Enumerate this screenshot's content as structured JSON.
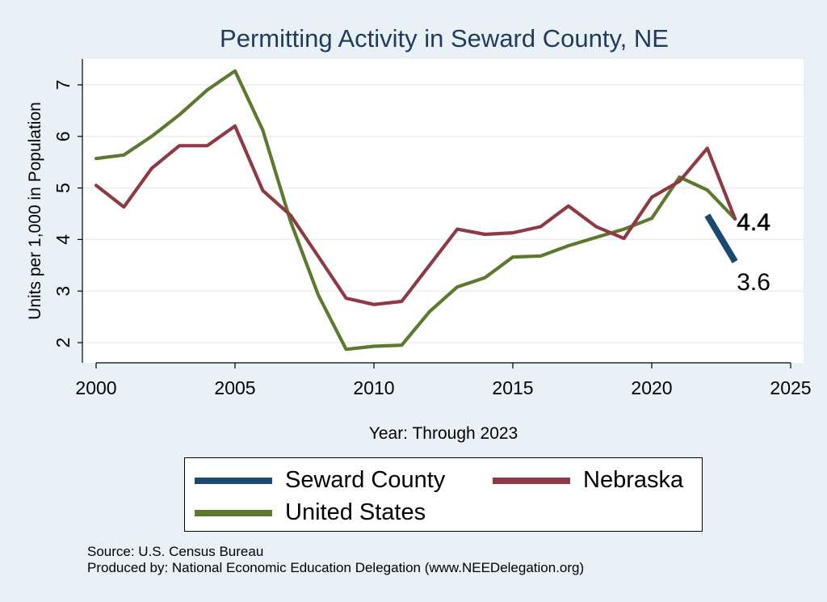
{
  "chart_data": {
    "type": "line",
    "title": "Permitting Activity in Seward County, NE",
    "xlabel": "Year: Through 2023",
    "ylabel": "Units per 1,000 in Population",
    "xlim": [
      2000,
      2025
    ],
    "ylim": [
      1.65,
      7.65
    ],
    "xticks": [
      2000,
      2005,
      2010,
      2015,
      2020,
      2025
    ],
    "yticks": [
      2,
      3,
      4,
      5,
      6,
      7
    ],
    "grid": true,
    "legend_position": "bottom",
    "series": [
      {
        "name": "Seward County",
        "color": "#1a4a72",
        "x": [
          2022,
          2023
        ],
        "y": [
          4.47,
          3.57
        ]
      },
      {
        "name": "Nebraska",
        "color": "#8f3a43",
        "x": [
          2000,
          2001,
          2002,
          2003,
          2004,
          2005,
          2006,
          2007,
          2008,
          2009,
          2010,
          2011,
          2012,
          2013,
          2014,
          2015,
          2016,
          2017,
          2018,
          2019,
          2020,
          2021,
          2022,
          2023
        ],
        "y": [
          5.05,
          4.63,
          5.38,
          5.82,
          5.82,
          6.2,
          4.95,
          4.47,
          3.67,
          2.86,
          2.74,
          2.8,
          3.5,
          4.2,
          4.1,
          4.13,
          4.25,
          4.65,
          4.25,
          4.02,
          4.82,
          5.13,
          5.77,
          4.4
        ]
      },
      {
        "name": "United States",
        "color": "#5b7a2e",
        "x": [
          2000,
          2001,
          2002,
          2003,
          2004,
          2005,
          2006,
          2007,
          2008,
          2009,
          2010,
          2011,
          2012,
          2013,
          2014,
          2015,
          2016,
          2017,
          2018,
          2019,
          2020,
          2021,
          2022,
          2023
        ],
        "y": [
          5.57,
          5.64,
          6.0,
          6.42,
          6.9,
          7.27,
          6.12,
          4.35,
          2.92,
          1.87,
          1.93,
          1.95,
          2.6,
          3.08,
          3.26,
          3.66,
          3.68,
          3.88,
          4.04,
          4.2,
          4.41,
          5.21,
          4.96,
          4.4
        ]
      }
    ],
    "annotations": [
      {
        "text": "4.4",
        "x": 2023,
        "y": 4.4
      },
      {
        "text": "3.6",
        "x": 2023,
        "y": 3.57
      }
    ]
  },
  "legend": {
    "order": [
      "Seward County",
      "Nebraska",
      "United States"
    ]
  },
  "footer": {
    "source": "Source: U.S. Census Bureau",
    "produced_by": "Produced by: National Economic Education Delegation (www.NEEDelegation.org)"
  },
  "colors": {
    "background": "#e9f1f6",
    "plot_background": "#ffffff",
    "title": "#1f3b60"
  }
}
